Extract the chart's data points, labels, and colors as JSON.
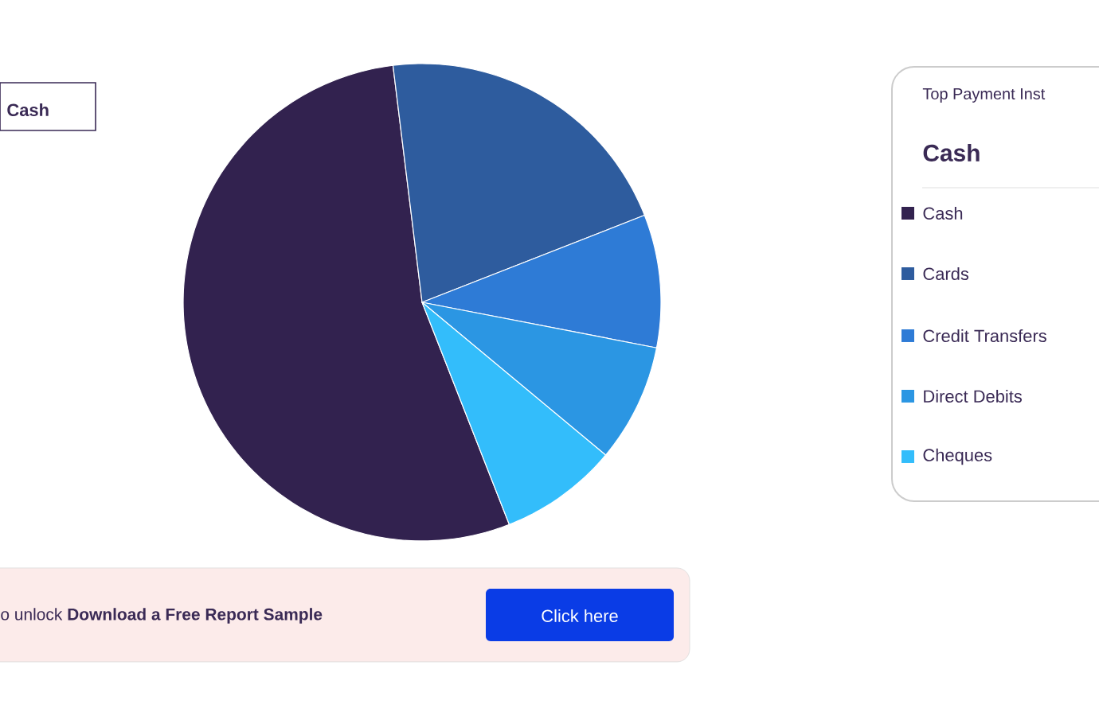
{
  "chart_data": {
    "type": "pie",
    "legend_title": "Top Payment Inst",
    "legend": "right",
    "categories": [
      "Cash",
      "Cards",
      "Credit Transfers",
      "Direct Debits",
      "Cheques"
    ],
    "values": [
      54,
      21,
      9,
      8,
      8
    ],
    "colors": [
      "#32224f",
      "#2e5c9e",
      "#2e7bd6",
      "#2b96e3",
      "#33bdfb"
    ],
    "annotations": [
      "Cash",
      "Cash",
      "o unlock **Download a Free Report Sample**",
      "Click here"
    ]
  }
}
